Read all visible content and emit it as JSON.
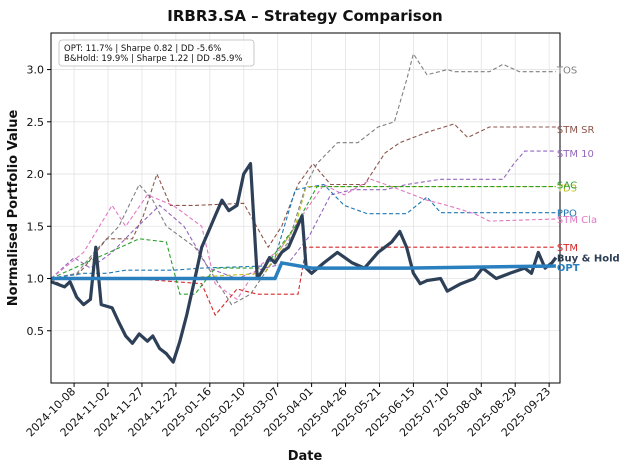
{
  "chart_data": {
    "type": "line",
    "title": "IRBR3.SA – Strategy Comparison",
    "xlabel": "Date",
    "ylabel": "Normalised Portfolio Value",
    "ylim": [
      0.0,
      3.35
    ],
    "xlim": [
      "2024-09-21",
      "2025-10-01"
    ],
    "y_ticks": [
      0.5,
      1.0,
      1.5,
      2.0,
      2.5,
      3.0
    ],
    "y_tick_labels": [
      "0.5",
      "1.0",
      "1.5",
      "2.0",
      "2.5",
      "3.0"
    ],
    "x_ticks": [
      "2024-10-08",
      "2024-11-02",
      "2024-11-27",
      "2024-12-22",
      "2025-01-16",
      "2025-02-10",
      "2025-03-07",
      "2025-04-01",
      "2025-04-26",
      "2025-05-21",
      "2025-06-15",
      "2025-07-10",
      "2025-08-04",
      "2025-08-29",
      "2025-09-23"
    ],
    "grid": true,
    "stats_box": [
      "OPT: 11.7% | Sharpe 0.82 | DD -5.6%",
      "B&Hold: 19.9% | Sharpe 1.22 | DD -85.9%"
    ],
    "series": [
      {
        "name": "TOS",
        "color": "#7f7f7f",
        "style": "dashed",
        "label_y": 3.0,
        "points": [
          [
            "2024-09-21",
            1.0
          ],
          [
            "2024-10-10",
            1.05
          ],
          [
            "2024-10-24",
            1.27
          ],
          [
            "2024-11-10",
            1.5
          ],
          [
            "2024-11-25",
            1.9
          ],
          [
            "2024-12-05",
            1.75
          ],
          [
            "2024-12-15",
            1.5
          ],
          [
            "2025-01-05",
            1.3
          ],
          [
            "2025-01-20",
            1.0
          ],
          [
            "2025-02-01",
            0.75
          ],
          [
            "2025-02-15",
            0.85
          ],
          [
            "2025-02-28",
            1.1
          ],
          [
            "2025-03-15",
            1.35
          ],
          [
            "2025-03-28",
            1.9
          ],
          [
            "2025-04-05",
            2.1
          ],
          [
            "2025-04-20",
            2.3
          ],
          [
            "2025-05-05",
            2.3
          ],
          [
            "2025-05-20",
            2.45
          ],
          [
            "2025-06-01",
            2.5
          ],
          [
            "2025-06-10",
            2.9
          ],
          [
            "2025-06-15",
            3.15
          ],
          [
            "2025-06-25",
            2.95
          ],
          [
            "2025-07-10",
            3.0
          ],
          [
            "2025-07-15",
            2.98
          ],
          [
            "2025-08-10",
            2.98
          ],
          [
            "2025-08-20",
            3.05
          ],
          [
            "2025-09-01",
            2.98
          ],
          [
            "2025-09-28",
            2.98
          ]
        ]
      },
      {
        "name": "STM SR",
        "color": "#8c564b",
        "style": "dashed",
        "label_y": 2.43,
        "points": [
          [
            "2024-09-21",
            1.0
          ],
          [
            "2024-10-01",
            0.92
          ],
          [
            "2024-10-15",
            1.1
          ],
          [
            "2024-11-01",
            1.38
          ],
          [
            "2024-11-20",
            1.38
          ],
          [
            "2024-11-28",
            1.6
          ],
          [
            "2024-12-08",
            2.0
          ],
          [
            "2024-12-18",
            1.7
          ],
          [
            "2025-01-05",
            1.7
          ],
          [
            "2025-02-10",
            1.72
          ],
          [
            "2025-02-28",
            1.3
          ],
          [
            "2025-03-10",
            1.5
          ],
          [
            "2025-03-22",
            1.9
          ],
          [
            "2025-04-02",
            2.1
          ],
          [
            "2025-04-15",
            1.9
          ],
          [
            "2025-05-10",
            1.9
          ],
          [
            "2025-05-25",
            2.2
          ],
          [
            "2025-06-05",
            2.3
          ],
          [
            "2025-06-25",
            2.4
          ],
          [
            "2025-07-15",
            2.48
          ],
          [
            "2025-07-25",
            2.35
          ],
          [
            "2025-08-10",
            2.45
          ],
          [
            "2025-09-28",
            2.45
          ]
        ]
      },
      {
        "name": "STM 10",
        "color": "#9467bd",
        "style": "dashed",
        "label_y": 2.2,
        "points": [
          [
            "2024-09-21",
            1.0
          ],
          [
            "2024-10-08",
            1.2
          ],
          [
            "2024-10-20",
            1.1
          ],
          [
            "2024-11-05",
            1.25
          ],
          [
            "2024-11-20",
            1.45
          ],
          [
            "2024-12-10",
            1.7
          ],
          [
            "2024-12-28",
            1.5
          ],
          [
            "2025-01-15",
            1.1
          ],
          [
            "2025-02-05",
            1.0
          ],
          [
            "2025-02-25",
            1.1
          ],
          [
            "2025-03-15",
            1.15
          ],
          [
            "2025-03-30",
            1.4
          ],
          [
            "2025-04-15",
            1.8
          ],
          [
            "2025-05-01",
            1.85
          ],
          [
            "2025-05-25",
            1.85
          ],
          [
            "2025-06-10",
            1.9
          ],
          [
            "2025-07-05",
            1.95
          ],
          [
            "2025-07-25",
            1.95
          ],
          [
            "2025-08-20",
            1.95
          ],
          [
            "2025-08-28",
            2.1
          ],
          [
            "2025-09-05",
            2.22
          ],
          [
            "2025-09-28",
            2.22
          ]
        ]
      },
      {
        "name": "PPO",
        "color": "#1f77b4",
        "style": "dashed",
        "label_y": 1.63,
        "points": [
          [
            "2024-09-21",
            1.0
          ],
          [
            "2024-10-15",
            1.05
          ],
          [
            "2024-11-01",
            1.05
          ],
          [
            "2024-11-15",
            1.08
          ],
          [
            "2024-12-20",
            1.08
          ],
          [
            "2025-01-10",
            1.1
          ],
          [
            "2025-02-25",
            1.12
          ],
          [
            "2025-03-05",
            1.2
          ],
          [
            "2025-03-20",
            1.85
          ],
          [
            "2025-04-10",
            1.9
          ],
          [
            "2025-04-25",
            1.7
          ],
          [
            "2025-05-12",
            1.62
          ],
          [
            "2025-06-10",
            1.62
          ],
          [
            "2025-06-25",
            1.78
          ],
          [
            "2025-07-05",
            1.63
          ],
          [
            "2025-09-28",
            1.63
          ]
        ]
      },
      {
        "name": "STM Cla",
        "color": "#e377c2",
        "style": "dashed",
        "label_y": 1.57,
        "points": [
          [
            "2024-09-21",
            1.0
          ],
          [
            "2024-10-15",
            1.25
          ],
          [
            "2024-11-05",
            1.7
          ],
          [
            "2024-11-15",
            1.5
          ],
          [
            "2024-12-01",
            1.8
          ],
          [
            "2024-12-20",
            1.7
          ],
          [
            "2025-01-10",
            1.5
          ],
          [
            "2025-01-20",
            0.95
          ],
          [
            "2025-02-05",
            0.8
          ],
          [
            "2025-02-20",
            1.1
          ],
          [
            "2025-03-10",
            1.3
          ],
          [
            "2025-03-25",
            1.6
          ],
          [
            "2025-04-10",
            1.9
          ],
          [
            "2025-04-25",
            1.8
          ],
          [
            "2025-05-15",
            1.95
          ],
          [
            "2025-06-05",
            1.85
          ],
          [
            "2025-06-25",
            1.75
          ],
          [
            "2025-07-10",
            1.7
          ],
          [
            "2025-07-30",
            1.62
          ],
          [
            "2025-08-10",
            1.55
          ],
          [
            "2025-09-28",
            1.57
          ]
        ]
      },
      {
        "name": "STM",
        "color": "#d62728",
        "style": "dashed",
        "label_y": 1.3,
        "points": [
          [
            "2024-09-21",
            1.0
          ],
          [
            "2024-11-20",
            1.0
          ],
          [
            "2025-01-10",
            0.95
          ],
          [
            "2025-01-20",
            0.65
          ],
          [
            "2025-02-05",
            0.9
          ],
          [
            "2025-02-20",
            0.85
          ],
          [
            "2025-03-10",
            0.85
          ],
          [
            "2025-03-22",
            0.85
          ],
          [
            "2025-03-28",
            1.3
          ],
          [
            "2025-04-10",
            1.3
          ],
          [
            "2025-09-28",
            1.3
          ]
        ]
      },
      {
        "name": "TD3",
        "color": "#bcbd22",
        "style": "dashed",
        "label_y": 1.87,
        "points": [
          [
            "2024-09-21",
            1.0
          ],
          [
            "2024-12-20",
            1.0
          ],
          [
            "2025-02-25",
            1.05
          ],
          [
            "2025-03-10",
            1.3
          ],
          [
            "2025-03-20",
            1.5
          ],
          [
            "2025-03-28",
            1.88
          ],
          [
            "2025-09-28",
            1.88
          ]
        ]
      },
      {
        "name": "SAC",
        "color": "#2ca02c",
        "style": "dashed",
        "label_y": 1.9,
        "points": [
          [
            "2024-09-21",
            1.0
          ],
          [
            "2024-11-25",
            1.38
          ],
          [
            "2024-12-15",
            1.35
          ],
          [
            "2024-12-25",
            0.85
          ],
          [
            "2025-01-05",
            0.85
          ],
          [
            "2025-01-20",
            1.1
          ],
          [
            "2025-02-25",
            1.1
          ],
          [
            "2025-03-20",
            1.5
          ],
          [
            "2025-04-05",
            1.88
          ],
          [
            "2025-09-28",
            1.88
          ]
        ]
      },
      {
        "name": "Buy & Hold",
        "color": "#2e4057",
        "style": "solid",
        "label_y": 1.2,
        "points": [
          [
            "2024-09-21",
            0.97
          ],
          [
            "2024-10-01",
            0.92
          ],
          [
            "2024-10-05",
            0.97
          ],
          [
            "2024-10-10",
            0.82
          ],
          [
            "2024-10-15",
            0.75
          ],
          [
            "2024-10-20",
            0.8
          ],
          [
            "2024-10-24",
            1.3
          ],
          [
            "2024-10-28",
            0.75
          ],
          [
            "2024-11-05",
            0.72
          ],
          [
            "2024-11-10",
            0.58
          ],
          [
            "2024-11-15",
            0.45
          ],
          [
            "2024-11-20",
            0.38
          ],
          [
            "2024-11-25",
            0.47
          ],
          [
            "2024-12-01",
            0.4
          ],
          [
            "2024-12-05",
            0.45
          ],
          [
            "2024-12-10",
            0.33
          ],
          [
            "2024-12-15",
            0.28
          ],
          [
            "2024-12-20",
            0.2
          ],
          [
            "2024-12-25",
            0.4
          ],
          [
            "2024-12-30",
            0.65
          ],
          [
            "2025-01-05",
            1.0
          ],
          [
            "2025-01-10",
            1.3
          ],
          [
            "2025-01-15",
            1.45
          ],
          [
            "2025-01-20",
            1.6
          ],
          [
            "2025-01-25",
            1.75
          ],
          [
            "2025-01-30",
            1.65
          ],
          [
            "2025-02-05",
            1.7
          ],
          [
            "2025-02-10",
            2.0
          ],
          [
            "2025-02-15",
            2.1
          ],
          [
            "2025-02-20",
            1.0
          ],
          [
            "2025-02-25",
            1.1
          ],
          [
            "2025-03-01",
            1.2
          ],
          [
            "2025-03-05",
            1.15
          ],
          [
            "2025-03-10",
            1.25
          ],
          [
            "2025-03-15",
            1.3
          ],
          [
            "2025-03-20",
            1.45
          ],
          [
            "2025-03-25",
            1.6
          ],
          [
            "2025-03-28",
            1.1
          ],
          [
            "2025-04-01",
            1.05
          ],
          [
            "2025-04-10",
            1.15
          ],
          [
            "2025-04-20",
            1.25
          ],
          [
            "2025-05-01",
            1.15
          ],
          [
            "2025-05-10",
            1.1
          ],
          [
            "2025-05-20",
            1.25
          ],
          [
            "2025-05-30",
            1.35
          ],
          [
            "2025-06-05",
            1.45
          ],
          [
            "2025-06-10",
            1.3
          ],
          [
            "2025-06-15",
            1.05
          ],
          [
            "2025-06-20",
            0.95
          ],
          [
            "2025-06-25",
            0.98
          ],
          [
            "2025-07-05",
            1.0
          ],
          [
            "2025-07-10",
            0.88
          ],
          [
            "2025-07-20",
            0.95
          ],
          [
            "2025-07-30",
            1.0
          ],
          [
            "2025-08-05",
            1.1
          ],
          [
            "2025-08-15",
            1.0
          ],
          [
            "2025-08-25",
            1.05
          ],
          [
            "2025-09-05",
            1.1
          ],
          [
            "2025-09-10",
            1.05
          ],
          [
            "2025-09-15",
            1.25
          ],
          [
            "2025-09-20",
            1.1
          ],
          [
            "2025-09-25",
            1.15
          ],
          [
            "2025-09-28",
            1.2
          ]
        ]
      },
      {
        "name": "OPT",
        "color": "#2a7fbf",
        "style": "solid-thick",
        "label_y": 1.11,
        "points": [
          [
            "2024-09-21",
            1.0
          ],
          [
            "2025-03-05",
            1.0
          ],
          [
            "2025-03-10",
            1.15
          ],
          [
            "2025-04-01",
            1.1
          ],
          [
            "2025-06-10",
            1.1
          ],
          [
            "2025-08-05",
            1.11
          ],
          [
            "2025-09-28",
            1.12
          ]
        ]
      }
    ]
  }
}
